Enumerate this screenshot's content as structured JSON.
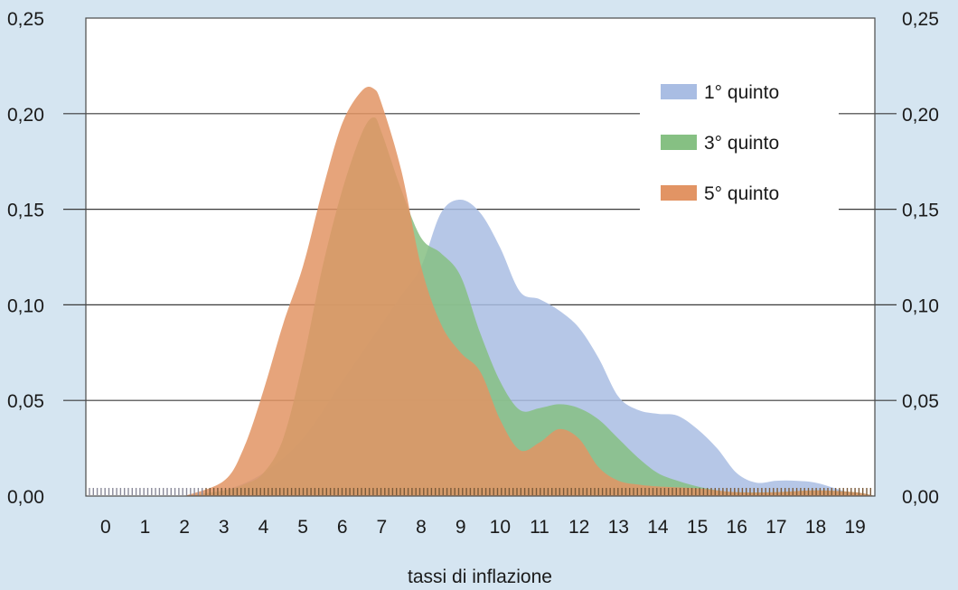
{
  "chart_data": {
    "type": "area",
    "title": "",
    "xlabel": "tassi di inflazione",
    "ylabel": "",
    "xlim": [
      -0.5,
      19.5
    ],
    "ylim": [
      0,
      0.25
    ],
    "grid": true,
    "legend_position": "top-right",
    "x_ticks": [
      "0",
      "1",
      "2",
      "3",
      "4",
      "5",
      "6",
      "7",
      "8",
      "9",
      "10",
      "11",
      "12",
      "13",
      "14",
      "15",
      "16",
      "17",
      "18",
      "19"
    ],
    "y_ticks": [
      "0,00",
      "0,05",
      "0,10",
      "0,15",
      "0,20",
      "0,25"
    ],
    "series": [
      {
        "name": "1° quinto",
        "color": "#a9bde3",
        "x": [
          2,
          3,
          4,
          5,
          6,
          7,
          7.5,
          8,
          8.5,
          9,
          9.5,
          10,
          10.5,
          11,
          11.5,
          12,
          12.5,
          13,
          13.5,
          14,
          14.5,
          15,
          15.5,
          16,
          16.5,
          17,
          17.5,
          18,
          18.5,
          19,
          19.5
        ],
        "y": [
          0.0,
          0.003,
          0.012,
          0.03,
          0.06,
          0.09,
          0.105,
          0.12,
          0.148,
          0.155,
          0.148,
          0.13,
          0.107,
          0.103,
          0.097,
          0.088,
          0.072,
          0.052,
          0.045,
          0.043,
          0.042,
          0.035,
          0.025,
          0.012,
          0.007,
          0.008,
          0.008,
          0.007,
          0.004,
          0.001,
          0.0
        ]
      },
      {
        "name": "3° quinto",
        "color": "#86c083",
        "x": [
          2,
          3,
          3.5,
          4,
          4.5,
          5,
          5.5,
          6,
          6.5,
          6.8,
          7,
          7.5,
          8,
          8.5,
          9,
          9.5,
          10,
          10.5,
          11,
          11.5,
          12,
          12.5,
          13,
          13.5,
          14,
          14.5,
          15,
          15.5,
          16,
          17,
          18,
          19,
          19.5
        ],
        "y": [
          0.0,
          0.003,
          0.006,
          0.012,
          0.03,
          0.07,
          0.12,
          0.16,
          0.19,
          0.198,
          0.19,
          0.16,
          0.135,
          0.127,
          0.115,
          0.085,
          0.06,
          0.045,
          0.046,
          0.048,
          0.046,
          0.04,
          0.03,
          0.02,
          0.012,
          0.008,
          0.005,
          0.003,
          0.002,
          0.002,
          0.003,
          0.002,
          0.0
        ]
      },
      {
        "name": "5° quinto",
        "color": "#e29464",
        "x": [
          2,
          3,
          3.5,
          4,
          4.5,
          5,
          5.5,
          6,
          6.5,
          6.8,
          7,
          7.5,
          8,
          8.5,
          9,
          9.5,
          10,
          10.5,
          11,
          11.5,
          12,
          12.5,
          13,
          13.5,
          14,
          15,
          16,
          17,
          18,
          19,
          19.5
        ],
        "y": [
          0.0,
          0.008,
          0.025,
          0.055,
          0.09,
          0.12,
          0.16,
          0.195,
          0.212,
          0.213,
          0.205,
          0.17,
          0.12,
          0.09,
          0.075,
          0.065,
          0.04,
          0.024,
          0.028,
          0.035,
          0.03,
          0.015,
          0.008,
          0.006,
          0.005,
          0.004,
          0.002,
          0.002,
          0.003,
          0.002,
          0.0
        ]
      }
    ]
  }
}
